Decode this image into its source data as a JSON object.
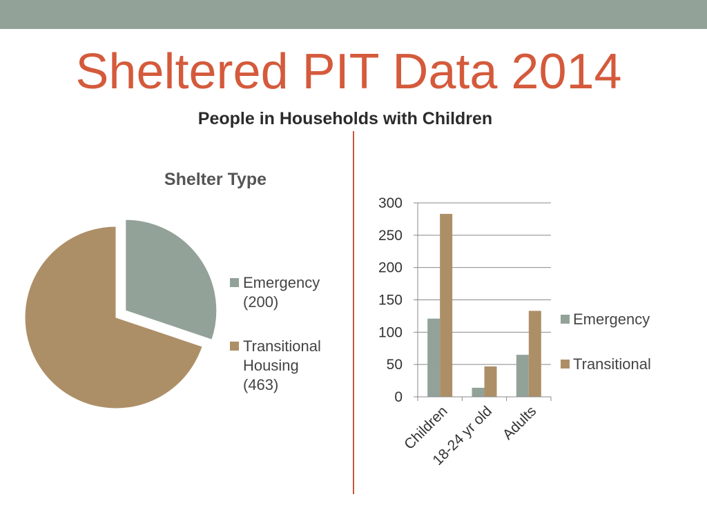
{
  "slide": {
    "title": "Sheltered PIT Data 2014",
    "subtitle": "People in Households with Children"
  },
  "colors": {
    "band": "#93a299",
    "title": "#d45a3c",
    "divider": "#c8553a",
    "emergency": "#93a299",
    "transitional": "#ad8f67"
  },
  "chart_data": [
    {
      "type": "pie",
      "title": "Shelter Type",
      "slices": [
        {
          "label": "Emergency",
          "value": 200,
          "legend_lines": [
            "Emergency",
            "(200)"
          ],
          "color": "#93a299",
          "exploded": true
        },
        {
          "label": "Transitional Housing",
          "value": 463,
          "legend_lines": [
            "Transitional",
            "Housing",
            "(463)"
          ],
          "color": "#ad8f67",
          "exploded": false
        }
      ],
      "legend_position": "right"
    },
    {
      "type": "bar",
      "categories": [
        "Children",
        "18-24 yr old",
        "Adults"
      ],
      "series": [
        {
          "name": "Emergency",
          "values": [
            121,
            14,
            65
          ],
          "color": "#93a299"
        },
        {
          "name": "Transitional",
          "values": [
            283,
            47,
            133
          ],
          "color": "#ad8f67"
        }
      ],
      "ylim": [
        0,
        300
      ],
      "yticks": [
        "0",
        "50",
        "100",
        "150",
        "200",
        "250",
        "300"
      ],
      "grid": true,
      "legend_position": "right"
    }
  ]
}
